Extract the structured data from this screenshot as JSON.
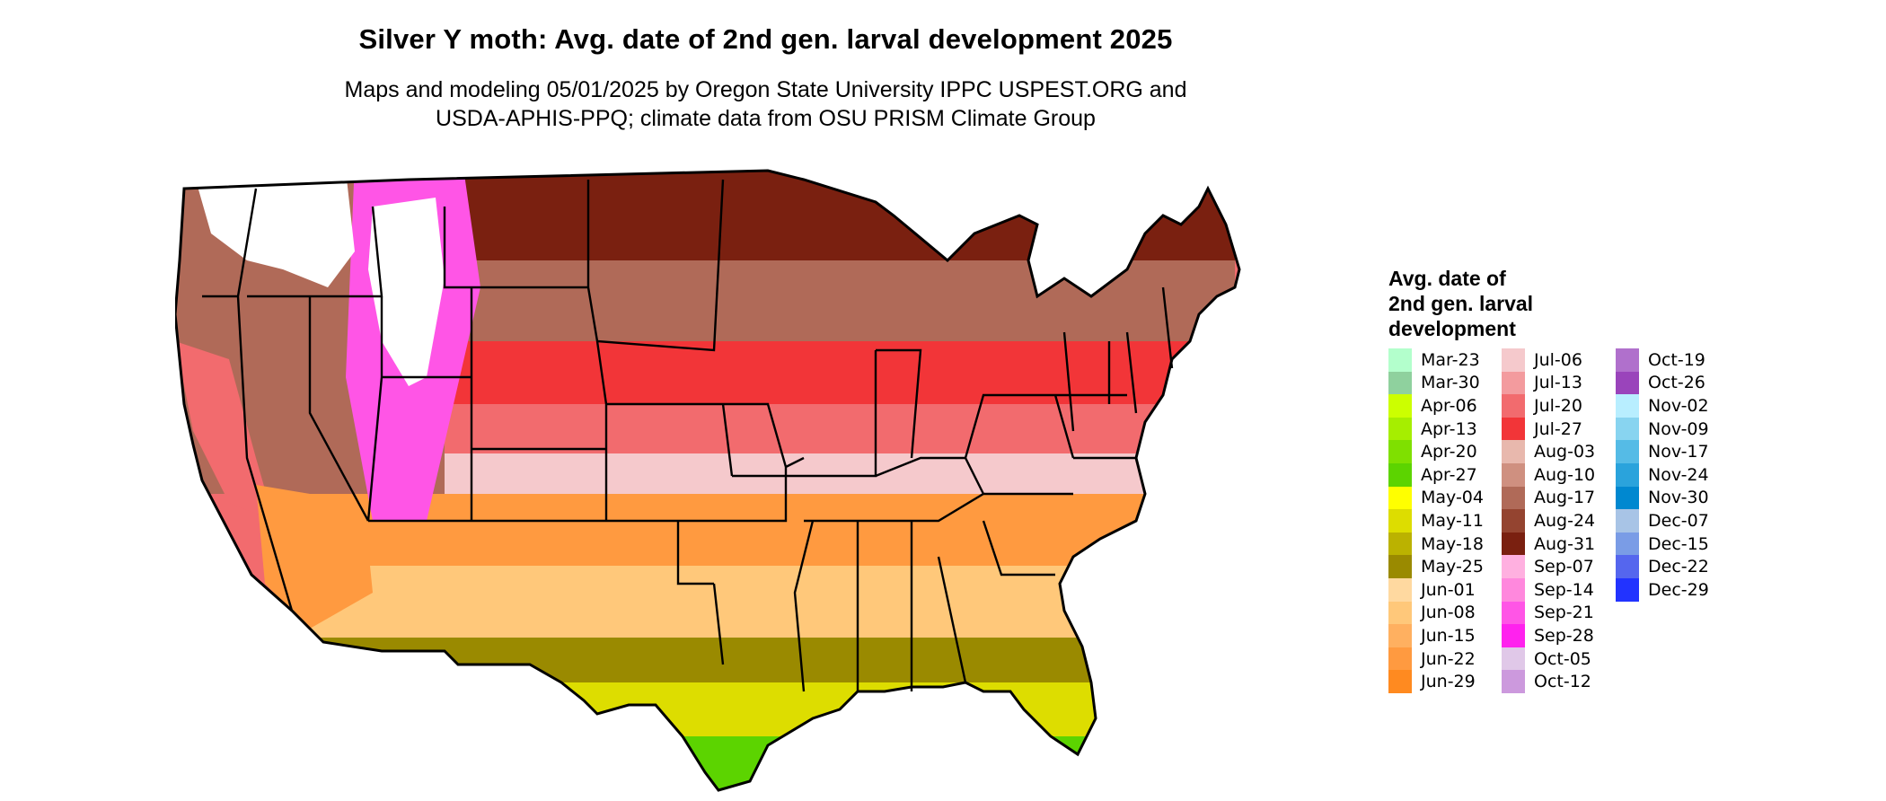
{
  "title": "Silver Y moth: Avg. date of 2nd gen. larval development 2025",
  "subtitle_line1": "Maps and modeling 05/01/2025 by Oregon State University IPPC USPEST.ORG and",
  "subtitle_line2": "USDA-APHIS-PPQ; climate data from OSU PRISM Climate Group",
  "legend": {
    "title_lines": [
      "Avg. date of",
      "2nd gen. larval",
      "development"
    ],
    "columns": [
      [
        {
          "label": "Mar-23",
          "color": "#b3ffcc"
        },
        {
          "label": "Mar-30",
          "color": "#8fd19e"
        },
        {
          "label": "Apr-06",
          "color": "#ccff00"
        },
        {
          "label": "Apr-13",
          "color": "#a6ee00"
        },
        {
          "label": "Apr-20",
          "color": "#7fe000"
        },
        {
          "label": "Apr-27",
          "color": "#5cd400"
        },
        {
          "label": "May-04",
          "color": "#ffff00"
        },
        {
          "label": "May-11",
          "color": "#dddd00"
        },
        {
          "label": "May-18",
          "color": "#bbb200"
        },
        {
          "label": "May-25",
          "color": "#9a8a00"
        },
        {
          "label": "Jun-01",
          "color": "#ffd9a0"
        },
        {
          "label": "Jun-08",
          "color": "#ffc87a"
        },
        {
          "label": "Jun-15",
          "color": "#ffb060"
        },
        {
          "label": "Jun-22",
          "color": "#ff9a40"
        },
        {
          "label": "Jun-29",
          "color": "#ff8a20"
        }
      ],
      [
        {
          "label": "Jul-06",
          "color": "#f5c9cc"
        },
        {
          "label": "Jul-13",
          "color": "#f39b9e"
        },
        {
          "label": "Jul-20",
          "color": "#f26b6e"
        },
        {
          "label": "Jul-27",
          "color": "#f23538"
        },
        {
          "label": "Aug-03",
          "color": "#e8b8ad"
        },
        {
          "label": "Aug-10",
          "color": "#cf9080"
        },
        {
          "label": "Aug-17",
          "color": "#b06a58"
        },
        {
          "label": "Aug-24",
          "color": "#944430"
        },
        {
          "label": "Aug-31",
          "color": "#7a2010"
        },
        {
          "label": "Sep-07",
          "color": "#ffb0e0"
        },
        {
          "label": "Sep-14",
          "color": "#ff88dd"
        },
        {
          "label": "Sep-21",
          "color": "#ff55e6"
        },
        {
          "label": "Sep-28",
          "color": "#ff22ee"
        },
        {
          "label": "Oct-05",
          "color": "#e0c8e8"
        },
        {
          "label": "Oct-12",
          "color": "#cc99dd"
        }
      ],
      [
        {
          "label": "Oct-19",
          "color": "#b070cc"
        },
        {
          "label": "Oct-26",
          "color": "#9a44bb"
        },
        {
          "label": "Nov-02",
          "color": "#b8eeff"
        },
        {
          "label": "Nov-09",
          "color": "#88d4f0"
        },
        {
          "label": "Nov-17",
          "color": "#55bbe6"
        },
        {
          "label": "Nov-24",
          "color": "#2aa3dc"
        },
        {
          "label": "Nov-30",
          "color": "#0088d0"
        },
        {
          "label": "Dec-07",
          "color": "#a8c4e6"
        },
        {
          "label": "Dec-15",
          "color": "#7a9ce6"
        },
        {
          "label": "Dec-22",
          "color": "#5566ee"
        },
        {
          "label": "Dec-29",
          "color": "#2233ff"
        }
      ]
    ]
  },
  "map_colors": {
    "no_data": "#ffffff",
    "far_south_tip": "#5cd400",
    "gulf_coast": "#dddd00",
    "south_inner": "#9a8a00",
    "southern_plain": "#ffc87a",
    "mid_south": "#ff9a40",
    "central_pink": "#f5c9cc",
    "central_red": "#f26b6e",
    "northern_red": "#f23538",
    "northern_brown": "#b06a58",
    "dark_north": "#7a2010",
    "mountain_magenta": "#ff55e6",
    "state_border": "#000000"
  }
}
